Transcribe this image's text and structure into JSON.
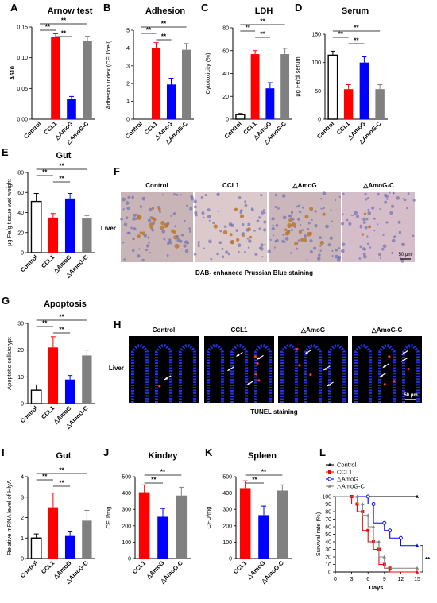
{
  "panel_labels": [
    "A",
    "B",
    "C",
    "D",
    "E",
    "F",
    "G",
    "H",
    "I",
    "J",
    "K",
    "L"
  ],
  "groups": [
    "Control",
    "CCL1",
    "△AmoG",
    "△AmoG-C"
  ],
  "colors": {
    "control": "#ffffff",
    "ccl1": "#ff0000",
    "amog": "#0000ff",
    "amogc": "#808080"
  },
  "sig_label": "**",
  "f_panel": {
    "headers": [
      "Control",
      "CCL1",
      "△AmoG",
      "△AmoG-C"
    ],
    "row_label": "Liver",
    "scale_bar": "50 μm",
    "caption": "DAB- enhanced Prussian Blue staining"
  },
  "h_panel": {
    "headers": [
      "Control",
      "CCL1",
      "△AmoG",
      "△AmoG-C"
    ],
    "row_label": "Liver",
    "scale_bar": "50 μm",
    "caption": "TUNEL staining"
  },
  "chart_data": [
    {
      "id": "A",
      "type": "bar",
      "title": "Arnow test",
      "ylabel": "A510",
      "ylim": [
        0,
        0.15
      ],
      "yticks": [
        "0.00",
        "0.05",
        "0.10",
        "0.15"
      ],
      "categories": [
        "Control",
        "CCL1",
        "△AmoG",
        "△AmoG-C"
      ],
      "values": [
        0,
        0.134,
        0.033,
        0.127
      ],
      "errors": [
        0,
        0.005,
        0.004,
        0.008
      ]
    },
    {
      "id": "B",
      "type": "bar",
      "title": "Adhesion",
      "ylabel": "Adhesion index (CFU/cell)",
      "ylim": [
        0,
        5
      ],
      "yticks": [
        "0",
        "1",
        "2",
        "3",
        "4",
        "5"
      ],
      "categories": [
        "Control",
        "CCL1",
        "△AmoG",
        "△AmoG-C"
      ],
      "values": [
        0,
        4.0,
        1.95,
        3.9
      ],
      "errors": [
        0,
        0.3,
        0.35,
        0.35
      ]
    },
    {
      "id": "C",
      "type": "bar",
      "title": "LDH",
      "ylabel": "Cytotoxicity (%)",
      "ylim": [
        0,
        80
      ],
      "yticks": [
        "0",
        "20",
        "40",
        "60",
        "80"
      ],
      "categories": [
        "Control",
        "CCL1",
        "△AmoG",
        "△AmoG-C"
      ],
      "values": [
        4,
        57,
        27,
        57
      ],
      "errors": [
        1,
        3,
        5,
        5
      ]
    },
    {
      "id": "D",
      "type": "bar",
      "title": "Serum",
      "ylabel": "μg Fe/dl serum",
      "ylim": [
        0,
        150
      ],
      "yticks": [
        "0",
        "50",
        "100",
        "150"
      ],
      "categories": [
        "Control",
        "CCL1",
        "△AmoG",
        "△AmoG-C"
      ],
      "values": [
        113,
        53,
        100,
        53
      ],
      "errors": [
        7,
        8,
        10,
        8
      ]
    },
    {
      "id": "E",
      "type": "bar",
      "title": "Gut",
      "ylabel": "μg Fe/g tissue wet weight",
      "ylim": [
        0,
        80
      ],
      "yticks": [
        "0",
        "20",
        "40",
        "60",
        "80"
      ],
      "categories": [
        "Control",
        "CCL1",
        "△AmoG",
        "△AmoG-C"
      ],
      "values": [
        51,
        35,
        54,
        34
      ],
      "errors": [
        8,
        4,
        5,
        3
      ]
    },
    {
      "id": "G",
      "type": "bar",
      "title": "Apoptosis",
      "ylabel": "Apoptotic cells/crypt",
      "ylim": [
        0,
        30
      ],
      "yticks": [
        "0",
        "10",
        "20",
        "30"
      ],
      "categories": [
        "Control",
        "CCL1",
        "△AmoG",
        "△AmoG-C"
      ],
      "values": [
        5,
        21,
        9,
        18
      ],
      "errors": [
        2,
        4,
        1.5,
        2
      ]
    },
    {
      "id": "I",
      "type": "bar",
      "title": "Gut",
      "ylabel": "Relative mRNA level of HlyA",
      "ylim": [
        0,
        4
      ],
      "yticks": [
        "0",
        "1",
        "2",
        "3",
        "4"
      ],
      "categories": [
        "Control",
        "CCL1",
        "△AmoG",
        "△AmoG-C"
      ],
      "values": [
        1.0,
        2.5,
        1.1,
        1.85
      ],
      "errors": [
        0.2,
        0.7,
        0.2,
        0.5
      ]
    },
    {
      "id": "J",
      "type": "bar",
      "title": "Kindey",
      "ylabel": "CFU/mg",
      "ylim": [
        0,
        500
      ],
      "yticks": [
        "0",
        "100",
        "200",
        "300",
        "400",
        "500"
      ],
      "categories": [
        "CCL1",
        "△AmoG",
        "△AmoG-C"
      ],
      "values": [
        405,
        255,
        385
      ],
      "errors": [
        45,
        50,
        50
      ]
    },
    {
      "id": "K",
      "type": "bar",
      "title": "Spleen",
      "ylabel": "CFU/mg",
      "ylim": [
        0,
        500
      ],
      "yticks": [
        "0",
        "100",
        "200",
        "300",
        "400",
        "500"
      ],
      "categories": [
        "CCL1",
        "△AmoG",
        "△AmoG-C"
      ],
      "values": [
        430,
        265,
        415
      ],
      "errors": [
        45,
        55,
        35
      ]
    },
    {
      "id": "L",
      "type": "line",
      "title": "",
      "xlabel": "Days",
      "ylabel": "Survival rate (%)",
      "xlim": [
        0,
        15
      ],
      "ylim": [
        0,
        100
      ],
      "xticks": [
        "0",
        "3",
        "6",
        "9",
        "12",
        "15"
      ],
      "yticks": [
        "0",
        "10",
        "20",
        "30",
        "40",
        "50",
        "60",
        "70",
        "80",
        "90",
        "100"
      ],
      "series": [
        {
          "name": "Control",
          "color": "#000000",
          "steps": [
            [
              0,
              100
            ],
            [
              15,
              100
            ]
          ]
        },
        {
          "name": "CCL1",
          "color": "#ff0000",
          "steps": [
            [
              0,
              100
            ],
            [
              3,
              100
            ],
            [
              3,
              90
            ],
            [
              4,
              90
            ],
            [
              4,
              80
            ],
            [
              5,
              80
            ],
            [
              5,
              55
            ],
            [
              6,
              55
            ],
            [
              6,
              40
            ],
            [
              7,
              40
            ],
            [
              7,
              30
            ],
            [
              8,
              30
            ],
            [
              8,
              10
            ],
            [
              9,
              10
            ],
            [
              9,
              5
            ],
            [
              10,
              5
            ],
            [
              10,
              0
            ],
            [
              15,
              0
            ]
          ]
        },
        {
          "name": "△AmoG",
          "color": "#0000ff",
          "steps": [
            [
              0,
              100
            ],
            [
              6,
              100
            ],
            [
              6,
              90
            ],
            [
              7,
              90
            ],
            [
              7,
              65
            ],
            [
              9,
              65
            ],
            [
              9,
              55
            ],
            [
              10,
              55
            ],
            [
              10,
              45
            ],
            [
              12,
              45
            ],
            [
              12,
              35
            ],
            [
              15,
              35
            ]
          ]
        },
        {
          "name": "△AmoG-C",
          "color": "#808080",
          "steps": [
            [
              0,
              100
            ],
            [
              4,
              100
            ],
            [
              4,
              90
            ],
            [
              5,
              90
            ],
            [
              5,
              75
            ],
            [
              6,
              75
            ],
            [
              6,
              60
            ],
            [
              7,
              60
            ],
            [
              7,
              40
            ],
            [
              8,
              40
            ],
            [
              8,
              20
            ],
            [
              9,
              20
            ],
            [
              9,
              5
            ],
            [
              15,
              5
            ]
          ]
        }
      ]
    }
  ]
}
